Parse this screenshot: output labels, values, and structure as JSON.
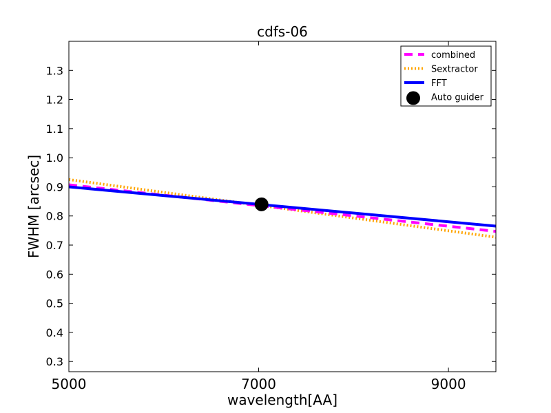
{
  "chart_data": {
    "type": "line",
    "title": "cdfs-06",
    "xlabel": "wavelength[AA]",
    "ylabel": "FWHM [arcsec]",
    "xlim": [
      5000,
      9500
    ],
    "ylim": [
      0.265,
      1.4
    ],
    "xticks": [
      5000,
      7000,
      9000
    ],
    "yticks": [
      0.3,
      0.4,
      0.5,
      0.6,
      0.7,
      0.8,
      0.9,
      1.0,
      1.1,
      1.2,
      1.3
    ],
    "grid": false,
    "legend_position": "top-right",
    "series": [
      {
        "name": "combined",
        "style": "dashed",
        "color": "#ff00ff",
        "x": [
          5000,
          9500
        ],
        "y": [
          0.907,
          0.747
        ]
      },
      {
        "name": "Sextractor",
        "style": "dotted",
        "color": "#ffa500",
        "x": [
          5000,
          9500
        ],
        "y": [
          0.925,
          0.727
        ]
      },
      {
        "name": "FFT",
        "style": "solid",
        "color": "#0000ff",
        "x": [
          5000,
          9500
        ],
        "y": [
          0.9,
          0.765
        ]
      },
      {
        "name": "Auto guider",
        "style": "marker",
        "color": "#000000",
        "x": [
          7030
        ],
        "y": [
          0.84
        ]
      }
    ]
  }
}
